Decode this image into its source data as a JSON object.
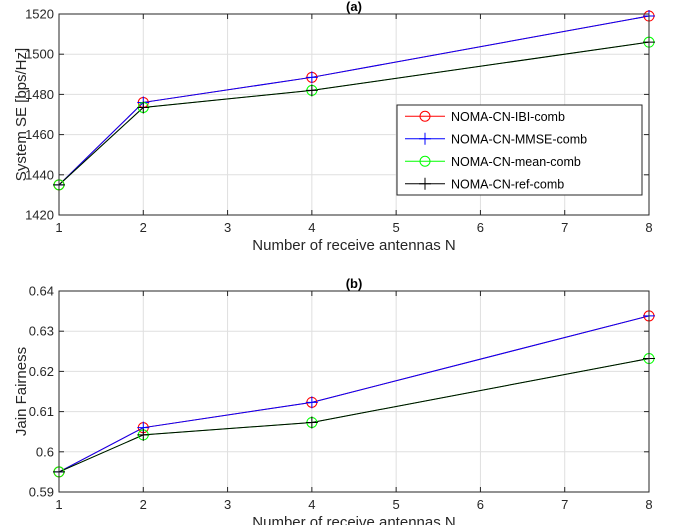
{
  "chart_data": [
    {
      "type": "line",
      "title": "(a)",
      "xlabel": "Number of receive antennas N",
      "ylabel": "System SE [bps/Hz]",
      "x": [
        1,
        2,
        4,
        8
      ],
      "xlim": [
        1,
        8
      ],
      "ylim": [
        1420,
        1520
      ],
      "xticks": [
        1,
        2,
        3,
        4,
        5,
        6,
        7,
        8
      ],
      "yticks": [
        1420,
        1440,
        1460,
        1480,
        1500,
        1520
      ],
      "grid": true,
      "legend": "center-right",
      "series": [
        {
          "name": "NOMA-CN-IBI-comb",
          "color": "#ff0000",
          "marker": "circle",
          "values": [
            1435,
            1476,
            1488.5,
            1519
          ]
        },
        {
          "name": "NOMA-CN-MMSE-comb",
          "color": "#0000ff",
          "marker": "plus",
          "values": [
            1435,
            1476,
            1488.5,
            1519
          ]
        },
        {
          "name": "NOMA-CN-mean-comb",
          "color": "#00ff00",
          "marker": "circle",
          "values": [
            1435,
            1473.5,
            1482,
            1506
          ]
        },
        {
          "name": "NOMA-CN-ref-comb",
          "color": "#000000",
          "marker": "plus",
          "values": [
            1435,
            1473.5,
            1482,
            1506
          ]
        }
      ]
    },
    {
      "type": "line",
      "title": "(b)",
      "xlabel": "Number of receive antennas N",
      "ylabel": "Jain Fairness",
      "x": [
        1,
        2,
        4,
        8
      ],
      "xlim": [
        1,
        8
      ],
      "ylim": [
        0.59,
        0.64
      ],
      "xticks": [
        1,
        2,
        3,
        4,
        5,
        6,
        7,
        8
      ],
      "yticks": [
        0.59,
        0.6,
        0.61,
        0.62,
        0.63,
        0.64
      ],
      "grid": true,
      "series": [
        {
          "color": "#ff0000",
          "marker": "circle",
          "values": [
            0.595,
            0.606,
            0.6123,
            0.6338
          ]
        },
        {
          "color": "#0000ff",
          "marker": "plus",
          "values": [
            0.595,
            0.606,
            0.6123,
            0.6338
          ]
        },
        {
          "color": "#00ff00",
          "marker": "circle",
          "values": [
            0.595,
            0.6042,
            0.6073,
            0.6232
          ]
        },
        {
          "color": "#000000",
          "marker": "plus",
          "values": [
            0.595,
            0.6042,
            0.6073,
            0.6232
          ]
        }
      ]
    }
  ]
}
